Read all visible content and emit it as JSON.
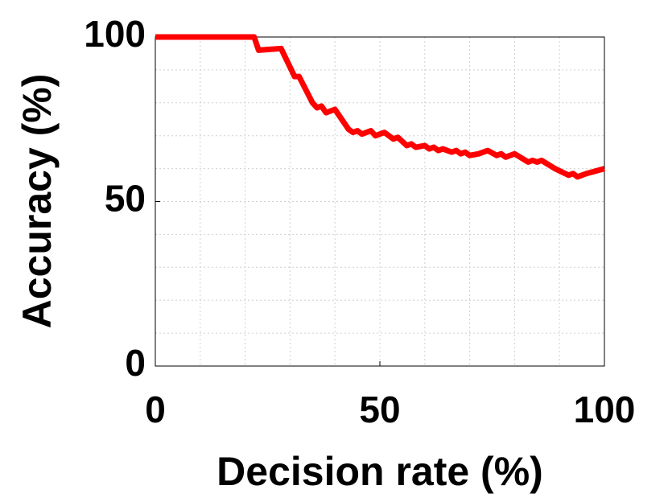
{
  "chart_data": {
    "type": "line",
    "xlabel": "Decision rate (%)",
    "ylabel": "Accuracy (%)",
    "x": [
      0,
      22,
      23,
      28,
      31,
      32,
      35,
      36,
      37,
      38,
      39,
      40,
      43,
      44,
      45,
      46,
      48,
      49,
      51,
      53,
      54,
      56,
      57,
      58,
      60,
      61,
      62,
      63,
      64,
      66,
      67,
      68,
      69,
      70,
      72,
      74,
      76,
      77,
      78,
      80,
      83,
      84,
      85,
      86,
      89,
      92,
      93,
      94,
      96,
      100
    ],
    "series": [
      {
        "name": "Accuracy",
        "color": "#ff0000",
        "values": [
          100,
          100,
          96,
          96.5,
          88,
          88,
          80,
          78.5,
          79,
          77,
          77.5,
          78,
          72,
          71,
          71.5,
          70.5,
          71.5,
          70,
          71,
          69,
          69.5,
          67,
          67.5,
          66.5,
          67,
          66,
          66.5,
          65.5,
          66,
          65,
          65.5,
          64.5,
          65,
          64,
          64.5,
          65.5,
          64,
          64.5,
          63.5,
          64.5,
          62,
          62.5,
          62,
          62.5,
          60,
          58,
          58.5,
          57.5,
          58.5,
          60
        ]
      }
    ],
    "xlim": [
      0,
      100
    ],
    "ylim": [
      0,
      100
    ],
    "xticks": [
      0,
      50,
      100
    ],
    "yticks": [
      0,
      50,
      100
    ],
    "xminorticks": [
      10,
      20,
      30,
      40,
      60,
      70,
      80,
      90
    ],
    "yminorticks": [
      10,
      20,
      30,
      40,
      60,
      70,
      80,
      90
    ],
    "grid": true
  }
}
